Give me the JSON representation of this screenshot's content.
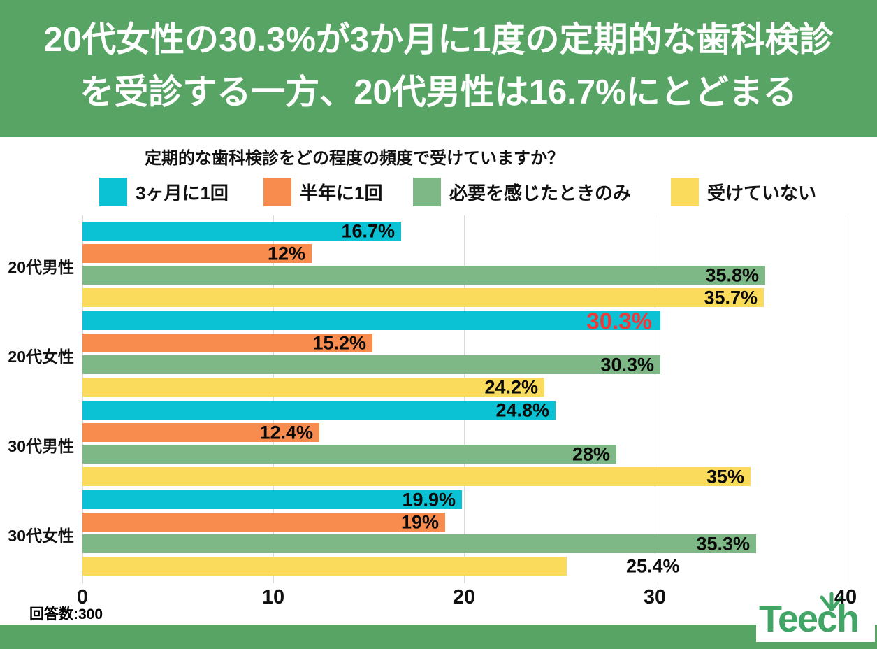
{
  "header": {
    "line1": "20代女性の30.3%が3か月に1度の定期的な歯科検診",
    "line2": "を受診する一方、20代男性は16.7%にとどまる",
    "bg_color": "#57a465",
    "text_color": "#ffffff"
  },
  "chart_data": {
    "type": "bar",
    "orientation": "horizontal",
    "title": "定期的な歯科検診をどの程度の頻度で受けていますか？",
    "categories": [
      "20代男性",
      "20代女性",
      "30代男性",
      "30代女性"
    ],
    "series": [
      {
        "name": "3ヶ月に1回",
        "color": "#0bc2d4",
        "values": [
          16.7,
          30.3,
          24.8,
          19.9
        ],
        "labels": [
          "16.7%",
          "30.3%",
          "24.8%",
          "19.9%"
        ]
      },
      {
        "name": "半年に1回",
        "color": "#f88b4e",
        "values": [
          12,
          15.2,
          12.4,
          19
        ],
        "labels": [
          "12%",
          "15.2%",
          "12.4%",
          "19%"
        ]
      },
      {
        "name": "必要を感じたときのみ",
        "color": "#7eb886",
        "values": [
          35.8,
          30.3,
          28,
          35.3
        ],
        "labels": [
          "35.8%",
          "30.3%",
          "28%",
          "35.3%"
        ]
      },
      {
        "name": "受けていない",
        "color": "#fbdb5b",
        "values": [
          35.7,
          24.2,
          35,
          25.4
        ],
        "labels": [
          "35.7%",
          "24.2%",
          "35%",
          "25.4%"
        ]
      }
    ],
    "xticks": [
      "0",
      "10",
      "20",
      "30",
      "40"
    ],
    "xlim": [
      0,
      40
    ],
    "grid": true,
    "legend_position": "top",
    "gridline_color": "#d9d9d9",
    "highlight": {
      "series_index": 0,
      "category_index": 1,
      "label_color": "#f0393b"
    },
    "outside_label": {
      "series_index": 3,
      "category_index": 3
    }
  },
  "footer": {
    "respondents": "回答数:300",
    "logo_text": "Teech",
    "logo_color": "#41a565",
    "strip_color": "#57a465"
  }
}
